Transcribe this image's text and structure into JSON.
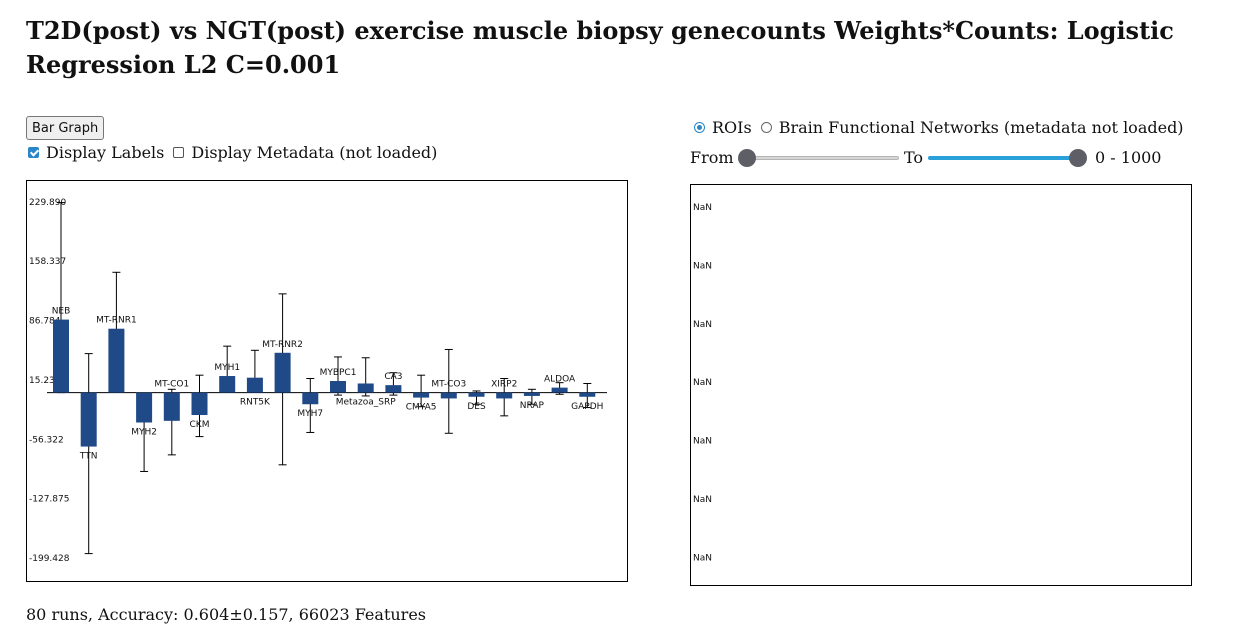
{
  "page": {
    "title": "T2D(post) vs NGT(post) exercise muscle biopsy genecounts Weights*Counts: Logistic Regression L2 C=0.001",
    "bar_graph_button": "Bar Graph",
    "display_labels": "Display Labels",
    "display_labels_checked": true,
    "display_metadata": "Display Metadata (not loaded)",
    "display_metadata_checked": false,
    "radio_rois": "ROIs",
    "radio_brain": "Brain Functional Networks (metadata not loaded)",
    "range_from": "From",
    "range_to": "To",
    "range_value": "0 - 1000",
    "right_panel_labels": [
      "NaN",
      "NaN",
      "NaN",
      "NaN",
      "NaN",
      "NaN",
      "NaN"
    ],
    "footer": "80 runs, Accuracy: 0.604±0.157, 66023 Features",
    "accent_color": "#2a86c7",
    "bar_color": "#1f4a87"
  },
  "chart_data": {
    "type": "bar",
    "title": "",
    "xlabel": "",
    "ylabel": "",
    "ylim": [
      -227,
      255
    ],
    "yticks": [
      229.89,
      158.337,
      86.784,
      15.231,
      -56.322,
      -127.875,
      -199.428
    ],
    "ytick_labels": [
      "229.890",
      "158.337",
      "86.784",
      "15.231",
      "-56.322",
      "-127.875",
      "-199.428"
    ],
    "legend": "none",
    "grid": false,
    "categories": [
      "NEB",
      "TTN",
      "MT-RNR1",
      "MYH2",
      "MT-CO1",
      "CKM",
      "MYH1",
      "RNT5K",
      "MT-RNR2",
      "MYH7",
      "MYBPC1",
      "Metazoa_SRP",
      "CA3",
      "CMYA5",
      "MT-CO3",
      "DES",
      "XIRP2",
      "NRAP",
      "ALDOA",
      "GAPDH"
    ],
    "series": [
      {
        "values": [
          88,
          -65,
          77,
          -36,
          -34,
          -27,
          20,
          18,
          48,
          -14,
          14,
          11,
          9,
          -6,
          -7,
          -5,
          -7,
          -4,
          6,
          -5
        ],
        "low": [
          0,
          -194,
          2,
          -95,
          -75,
          -53,
          2,
          3,
          -87,
          -48,
          -3,
          -4,
          -3,
          -17,
          -49,
          -14,
          -28,
          -14,
          -2,
          -18
        ],
        "high": [
          229,
          47,
          145,
          -9,
          4,
          21,
          56,
          51,
          119,
          17,
          43,
          42,
          24,
          21,
          52,
          2,
          17,
          4,
          12,
          11
        ],
        "label_side": [
          "above",
          "below",
          "above",
          "below",
          "above",
          "below",
          "above",
          "below",
          "above",
          "below",
          "above",
          "below",
          "above",
          "below",
          "above",
          "below",
          "above",
          "below",
          "above",
          "below"
        ]
      }
    ]
  }
}
